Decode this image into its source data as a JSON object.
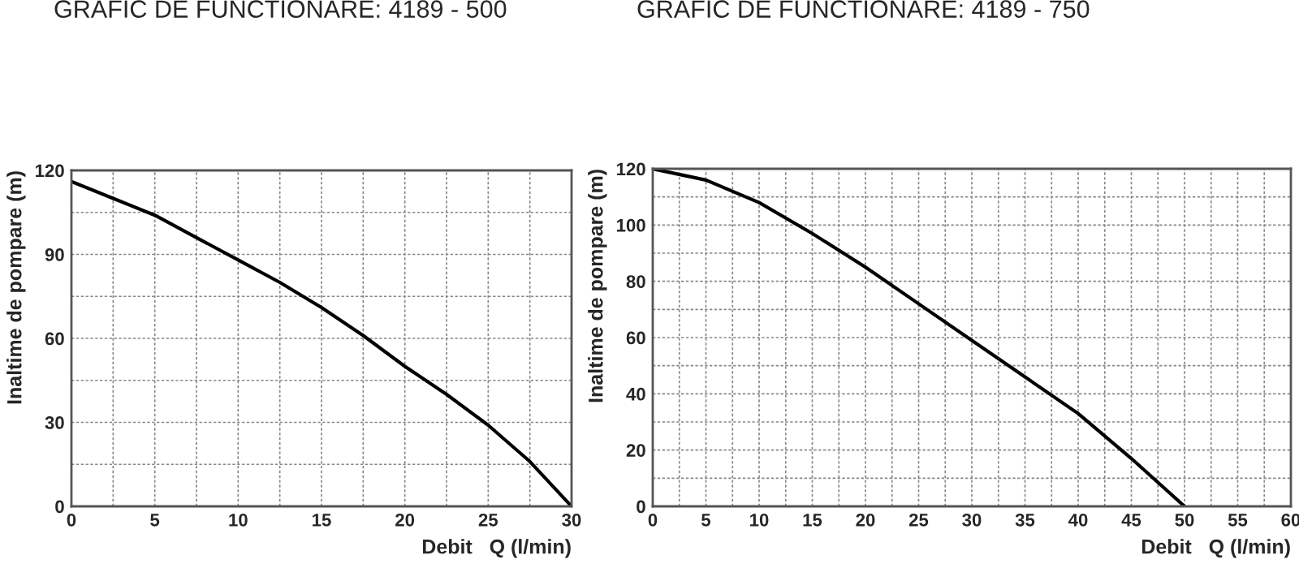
{
  "chart_data": [
    {
      "type": "line",
      "title": "GRAFIC DE FUNCTIONARE: 4189 - 500",
      "xlabel": "Debit   Q (l/min)",
      "ylabel": "Inaltime de pompare (m)",
      "x": [
        0,
        2.5,
        5,
        7.5,
        10,
        12.5,
        15,
        17.5,
        20,
        22.5,
        25,
        27.5,
        30
      ],
      "series": [
        {
          "color": "#000000",
          "values": [
            116,
            110,
            104,
            96,
            88,
            80,
            71,
            61,
            50,
            40,
            29,
            16,
            0
          ]
        }
      ],
      "xlim": [
        0,
        30
      ],
      "ylim": [
        0,
        120
      ],
      "xticks": [
        0,
        {
          "value": 2.5,
          "label": null
        },
        5,
        {
          "value": 7.5,
          "label": null
        },
        10,
        {
          "value": 12.5,
          "label": null
        },
        15,
        {
          "value": 17.5,
          "label": null
        },
        20,
        {
          "value": 22.5,
          "label": null
        },
        25,
        {
          "value": 27.5,
          "label": null
        },
        30
      ],
      "yticks": [
        0,
        {
          "value": 15,
          "label": null
        },
        30,
        {
          "value": 45,
          "label": null
        },
        60,
        {
          "value": 75,
          "label": null
        },
        90,
        {
          "value": 105,
          "label": null
        },
        120
      ],
      "grid": true,
      "line_style": "solid",
      "marker": "none"
    },
    {
      "type": "line",
      "title": "GRAFIC DE FUNCTIONARE: 4189 - 750",
      "xlabel": "Debit   Q (l/min)",
      "ylabel": "Inaltime de pompare (m)",
      "x": [
        0,
        5,
        10,
        15,
        20,
        25,
        30,
        35,
        40,
        45,
        50
      ],
      "series": [
        {
          "color": "#000000",
          "values": [
            120,
            116,
            108,
            97,
            85,
            72,
            59,
            46,
            33,
            17,
            0
          ]
        }
      ],
      "xlim": [
        0,
        60
      ],
      "ylim": [
        0,
        120
      ],
      "xticks": [
        0,
        {
          "value": 2.5,
          "label": null
        },
        5,
        {
          "value": 7.5,
          "label": null
        },
        10,
        {
          "value": 12.5,
          "label": null
        },
        15,
        {
          "value": 17.5,
          "label": null
        },
        20,
        {
          "value": 22.5,
          "label": null
        },
        25,
        {
          "value": 27.5,
          "label": null
        },
        30,
        {
          "value": 32.5,
          "label": null
        },
        35,
        {
          "value": 37.5,
          "label": null
        },
        40,
        {
          "value": 42.5,
          "label": null
        },
        45,
        {
          "value": 47.5,
          "label": null
        },
        50,
        {
          "value": 52.5,
          "label": null
        },
        55,
        {
          "value": 57.5,
          "label": null
        },
        60
      ],
      "yticks": [
        0,
        {
          "value": 10,
          "label": null
        },
        20,
        {
          "value": 30,
          "label": null
        },
        40,
        {
          "value": 50,
          "label": null
        },
        60,
        {
          "value": 70,
          "label": null
        },
        80,
        {
          "value": 90,
          "label": null
        },
        100,
        {
          "value": 110,
          "label": null
        },
        120
      ],
      "grid": true,
      "line_style": "solid",
      "marker": "none"
    }
  ]
}
